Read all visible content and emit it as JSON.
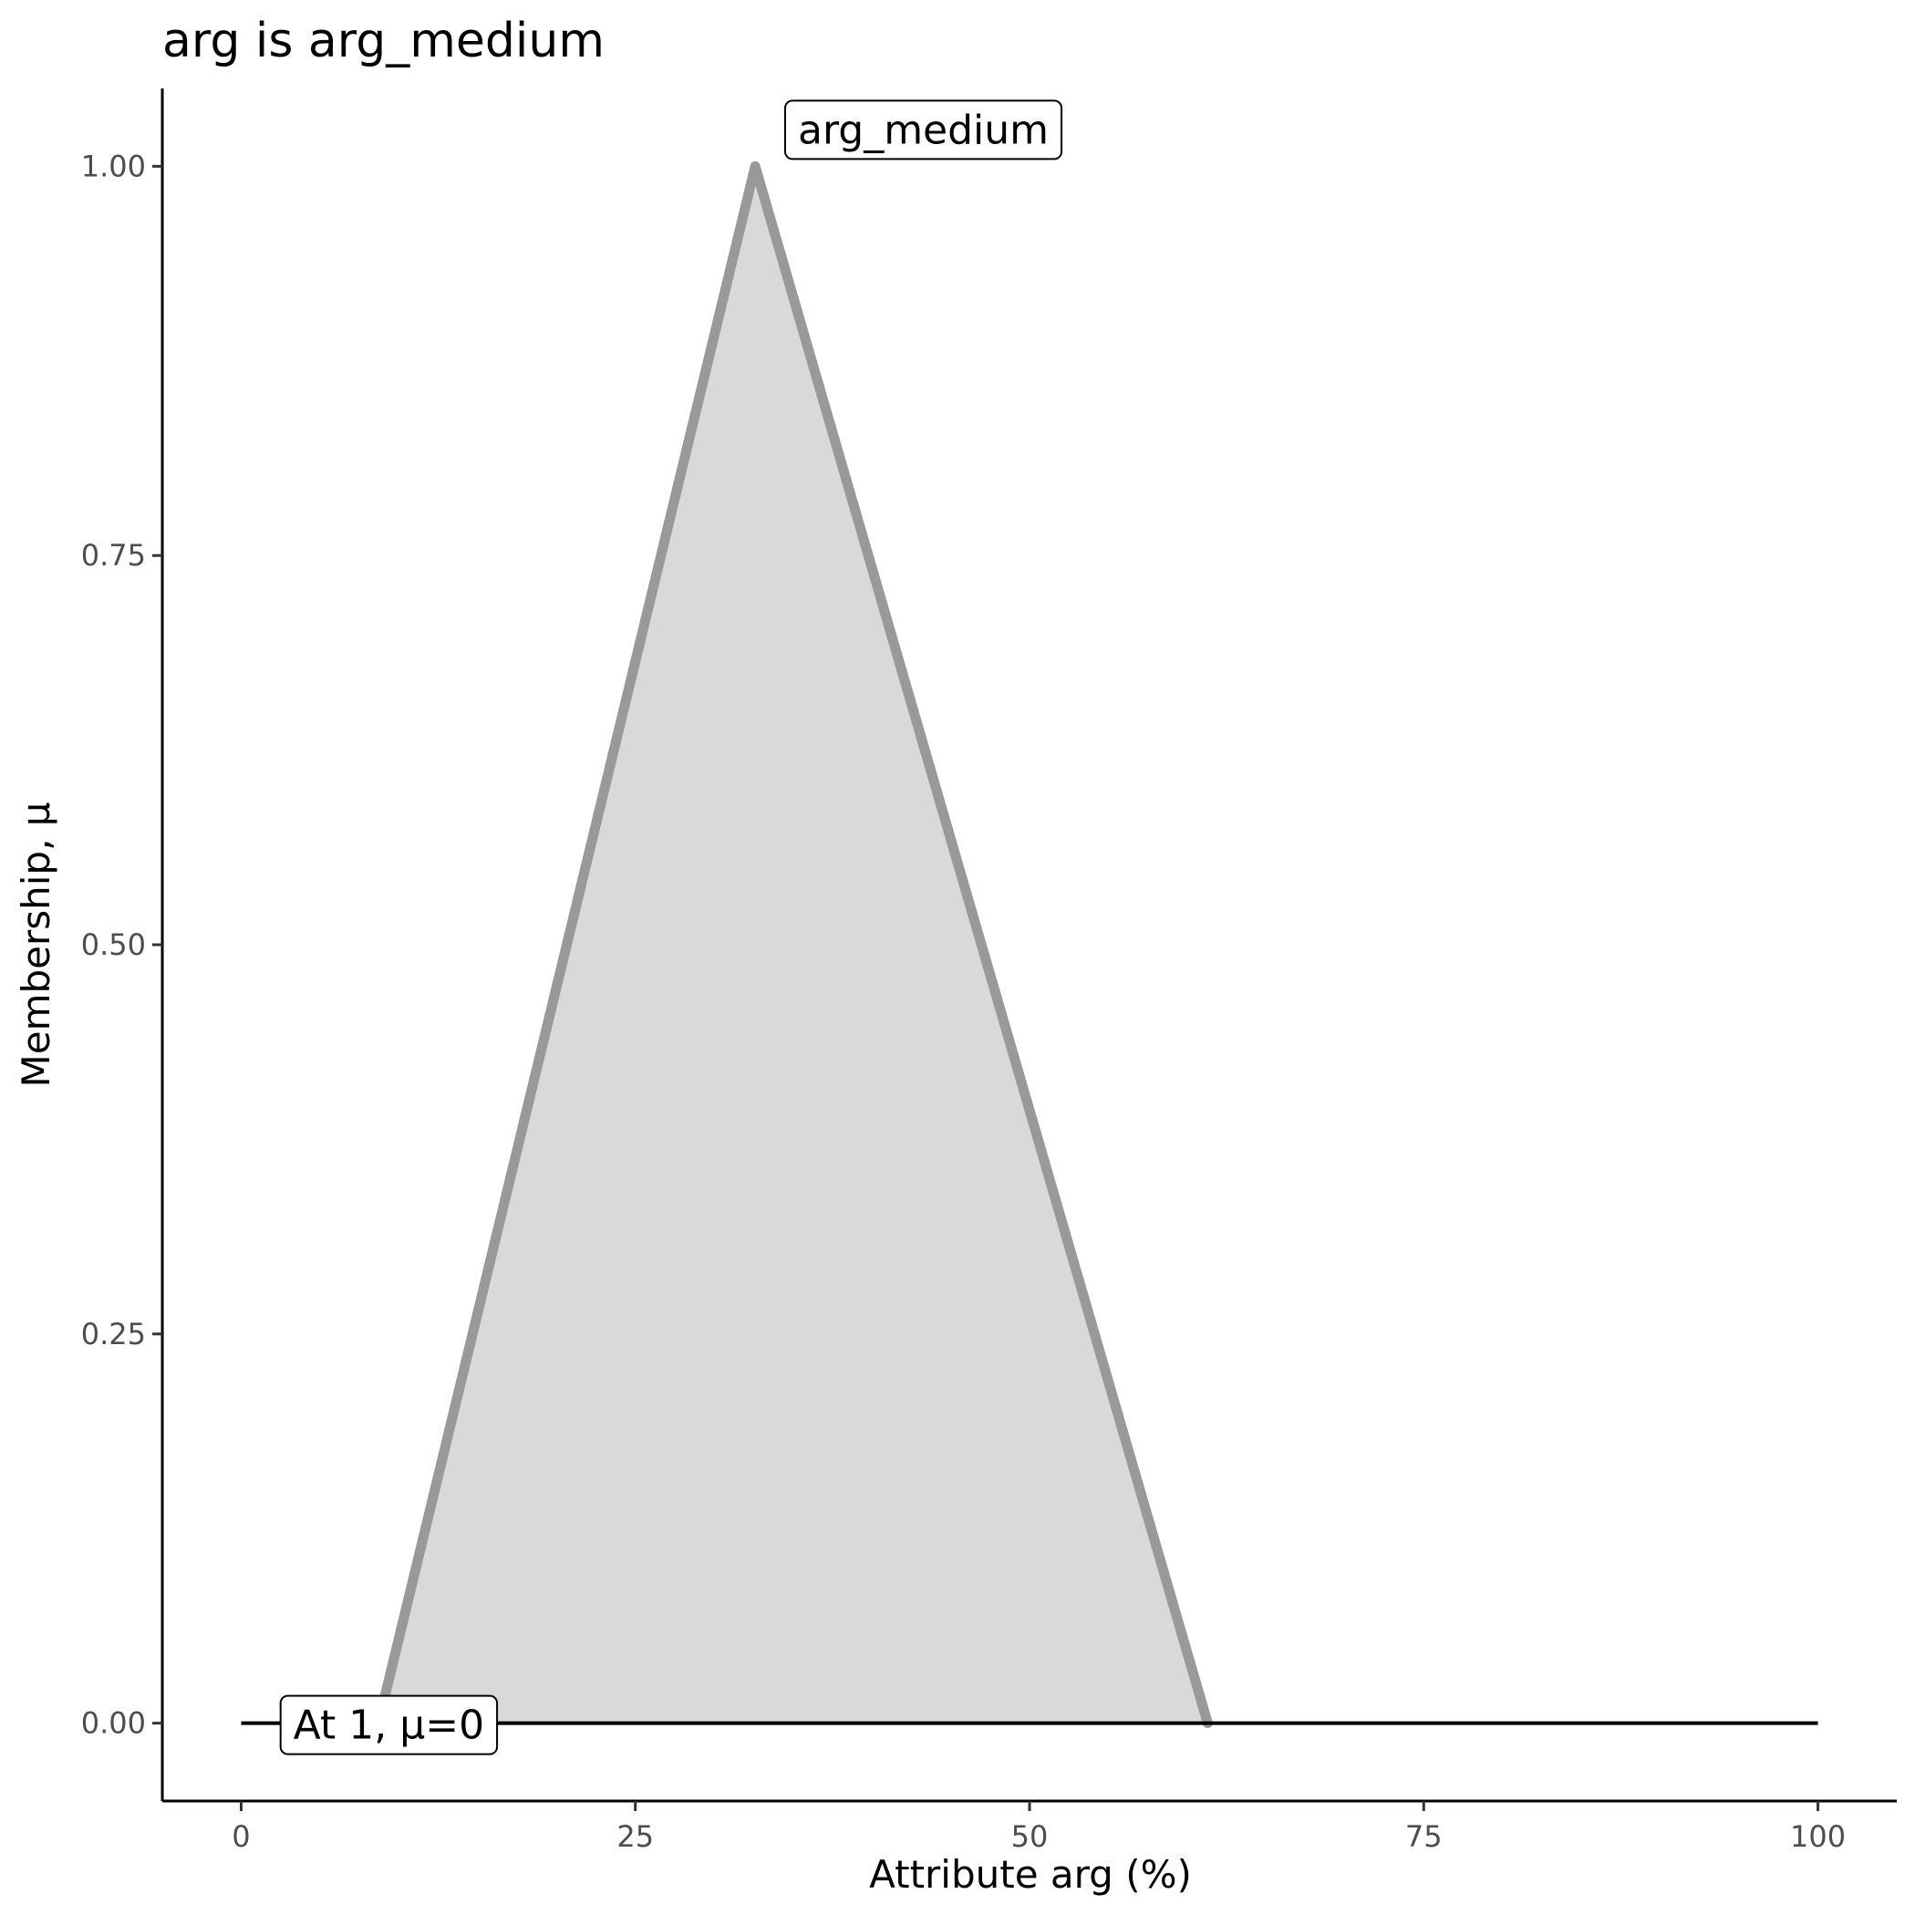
{
  "chart_data": {
    "type": "area",
    "title": "arg is arg_medium",
    "xlabel": "Attribute arg (%)",
    "ylabel": "Membership, μ",
    "xlim": [
      -5,
      105
    ],
    "ylim": [
      -0.05,
      1.05
    ],
    "x_ticks": [
      0,
      25,
      50,
      75,
      100
    ],
    "x_tick_labels": [
      "0",
      "25",
      "50",
      "75",
      "100"
    ],
    "y_ticks": [
      0,
      0.25,
      0.5,
      0.75,
      1.0
    ],
    "y_tick_labels": [
      "0.00",
      "0.25",
      "0.50",
      "0.75",
      "1.00"
    ],
    "grid": false,
    "series": [
      {
        "name": "arg_medium",
        "x": [
          8.7,
          32.6,
          61.3
        ],
        "y": [
          0,
          1,
          0
        ],
        "fill": "#d9d9d9",
        "stroke": "#999999"
      }
    ],
    "baseline": {
      "x": [
        0,
        100
      ],
      "y": [
        0,
        0
      ],
      "color": "#000000"
    },
    "annotations": [
      {
        "text": "arg_medium",
        "x": 34.5,
        "y": 1.0
      },
      {
        "text": "At 1, μ=0",
        "x": 2.5,
        "y": 0.0
      }
    ]
  }
}
